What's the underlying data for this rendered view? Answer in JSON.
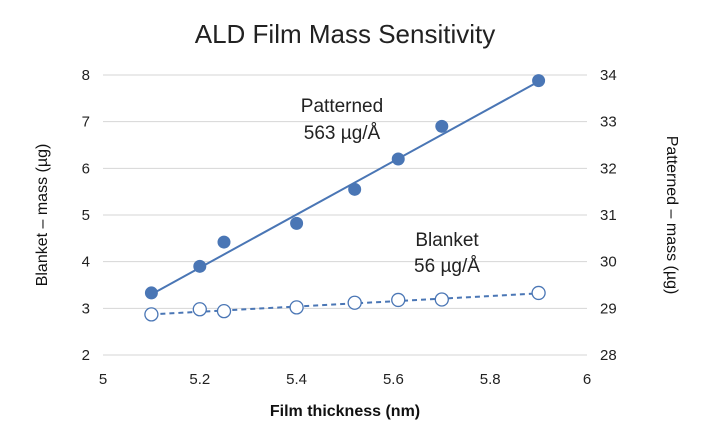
{
  "chart_data": {
    "type": "scatter",
    "title": "ALD Film Mass Sensitivity",
    "xlabel": "Film thickness (nm)",
    "ylabel_left": "Blanket – mass (µg)",
    "ylabel_right": "Patterned – mass (µg)",
    "xlim": [
      5,
      6
    ],
    "ylim_left": [
      2,
      8
    ],
    "ylim_right": [
      28,
      34
    ],
    "x_ticks": [
      "5",
      "5.2",
      "5.4",
      "5.6",
      "5.8",
      "6"
    ],
    "y_left_ticks": [
      "2",
      "3",
      "4",
      "5",
      "6",
      "7",
      "8"
    ],
    "y_right_ticks": [
      "28",
      "29",
      "30",
      "31",
      "32",
      "33",
      "34"
    ],
    "grid": "horizontal",
    "series": [
      {
        "name": "Patterned",
        "axis": "right",
        "marker": "filled-circle",
        "color": "#4a76b5",
        "trendline": "solid",
        "x": [
          5.1,
          5.2,
          5.25,
          5.4,
          5.52,
          5.61,
          5.7,
          5.9
        ],
        "y": [
          29.33,
          29.9,
          30.42,
          30.82,
          31.55,
          32.2,
          32.9,
          33.88
        ],
        "trend": [
          [
            5.1,
            29.3
          ],
          [
            5.9,
            33.86
          ]
        ]
      },
      {
        "name": "Blanket",
        "axis": "right",
        "marker": "open-circle",
        "color": "#4a76b5",
        "trendline": "dashed",
        "x": [
          5.1,
          5.2,
          5.25,
          5.4,
          5.52,
          5.61,
          5.7,
          5.9
        ],
        "y": [
          28.87,
          28.98,
          28.94,
          29.02,
          29.12,
          29.18,
          29.19,
          29.33
        ],
        "trend": [
          [
            5.1,
            28.87
          ],
          [
            5.9,
            29.32
          ]
        ]
      }
    ],
    "annotations": [
      {
        "series": "Patterned",
        "lines": [
          "Patterned",
          "563 µg/Å"
        ]
      },
      {
        "series": "Blanket",
        "lines": [
          "Blanket",
          "56 µg/Å"
        ]
      }
    ]
  }
}
